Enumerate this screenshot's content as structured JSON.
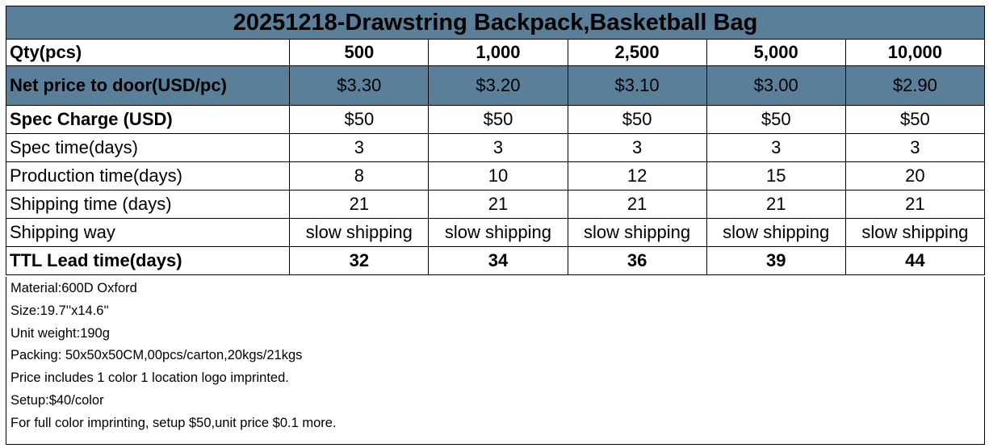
{
  "title": "20251218-Drawstring Backpack,Basketball Bag",
  "rows": [
    {
      "label": "Qty(pcs)",
      "values": [
        "500",
        "1,000",
        "2,500",
        "5,000",
        "10,000"
      ]
    },
    {
      "label": "Net price to door(USD/pc)",
      "values": [
        "$3.30",
        "$3.20",
        "$3.10",
        "$3.00",
        "$2.90"
      ]
    },
    {
      "label": "Spec Charge (USD)",
      "values": [
        "$50",
        "$50",
        "$50",
        "$50",
        "$50"
      ]
    },
    {
      "label": "Spec time(days)",
      "values": [
        "3",
        "3",
        "3",
        "3",
        "3"
      ]
    },
    {
      "label": "Production time(days)",
      "values": [
        "8",
        "10",
        "12",
        "15",
        "20"
      ]
    },
    {
      "label": "Shipping time (days)",
      "values": [
        "21",
        "21",
        "21",
        "21",
        "21"
      ]
    },
    {
      "label": "Shipping way",
      "values": [
        "slow shipping",
        "slow shipping",
        "slow shipping",
        "slow shipping",
        "slow shipping"
      ]
    },
    {
      "label": "TTL Lead time(days)",
      "values": [
        "32",
        "34",
        "36",
        "39",
        "44"
      ]
    }
  ],
  "notes": [
    "Material:600D Oxford",
    "Size:19.7''x14.6''",
    "Unit weight:190g",
    "Packing: 50x50x50CM,00pcs/carton,20kgs/21kgs",
    "Price includes 1 color 1 location logo imprinted.",
    "Setup:$40/color",
    "For full color imprinting, setup $50,unit price $0.1 more."
  ],
  "colors": {
    "header_fill": "#5a7f99",
    "border": "#000000",
    "background": "#ffffff"
  }
}
